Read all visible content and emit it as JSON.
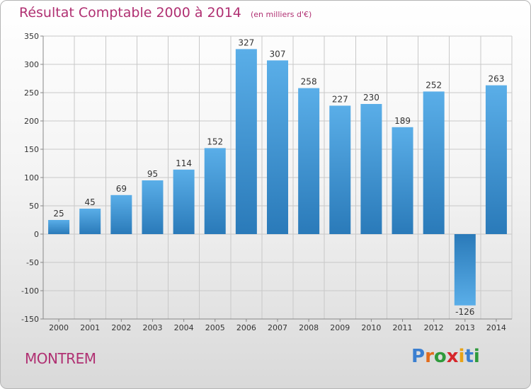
{
  "header": {
    "title": "Résultat Comptable 2000 à 2014",
    "unit": "(en milliers d'€)"
  },
  "footer": {
    "place": "MONTREM",
    "logo_letters": [
      "P",
      "r",
      "o",
      "x",
      "i",
      "t",
      "i"
    ],
    "logo_colors": [
      "#3b7fd0",
      "#e36c1c",
      "#2f9a3c",
      "#d6262b",
      "#e8a317",
      "#3b7fd0",
      "#2f9a3c"
    ]
  },
  "chart_data": {
    "type": "bar",
    "categories": [
      "2000",
      "2001",
      "2002",
      "2003",
      "2004",
      "2005",
      "2006",
      "2007",
      "2008",
      "2009",
      "2010",
      "2011",
      "2012",
      "2013",
      "2014"
    ],
    "values": [
      25,
      45,
      69,
      95,
      114,
      152,
      327,
      307,
      258,
      227,
      230,
      189,
      252,
      -126,
      263
    ],
    "title": "Résultat Comptable 2000 à 2014",
    "xlabel": "",
    "ylabel": "",
    "ylim": [
      -150,
      350
    ],
    "yticks": [
      -150,
      -100,
      -50,
      0,
      50,
      100,
      150,
      200,
      250,
      300,
      350
    ],
    "grid": true,
    "colors": {
      "bar_top": "#5aaee8",
      "bar_bottom": "#2a7ab9",
      "grid": "#c8c8c8",
      "axis": "#888888",
      "title": "#b03072"
    }
  }
}
